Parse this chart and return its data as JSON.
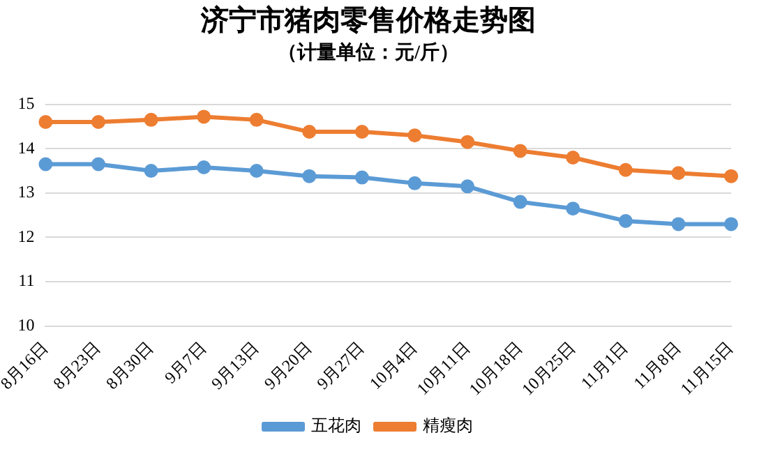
{
  "chart_data": {
    "type": "line",
    "title": "济宁市猪肉零售价格走势图",
    "subtitle": "（计量单位：元/斤）",
    "categories": [
      "8月16日",
      "8月23日",
      "8月30日",
      "9月7日",
      "9月13日",
      "9月20日",
      "9月27日",
      "10月4日",
      "10月11日",
      "10月18日",
      "10月25日",
      "11月1日",
      "11月8日",
      "11月15日"
    ],
    "series": [
      {
        "name": "五花肉",
        "color": "#5b9bd5",
        "values": [
          13.65,
          13.65,
          13.5,
          13.58,
          13.5,
          13.38,
          13.35,
          13.22,
          13.15,
          12.8,
          12.65,
          12.37,
          12.3,
          12.3
        ]
      },
      {
        "name": "精瘦肉",
        "color": "#ed7d31",
        "values": [
          14.6,
          14.6,
          14.65,
          14.72,
          14.65,
          14.38,
          14.38,
          14.3,
          14.15,
          13.95,
          13.8,
          13.52,
          13.45,
          13.38
        ]
      }
    ],
    "ylim": [
      10,
      15
    ],
    "yticks": [
      10,
      11,
      12,
      13,
      14,
      15
    ],
    "grid": "y",
    "legend": "bottom",
    "marker": "circle",
    "line_style": "solid"
  }
}
